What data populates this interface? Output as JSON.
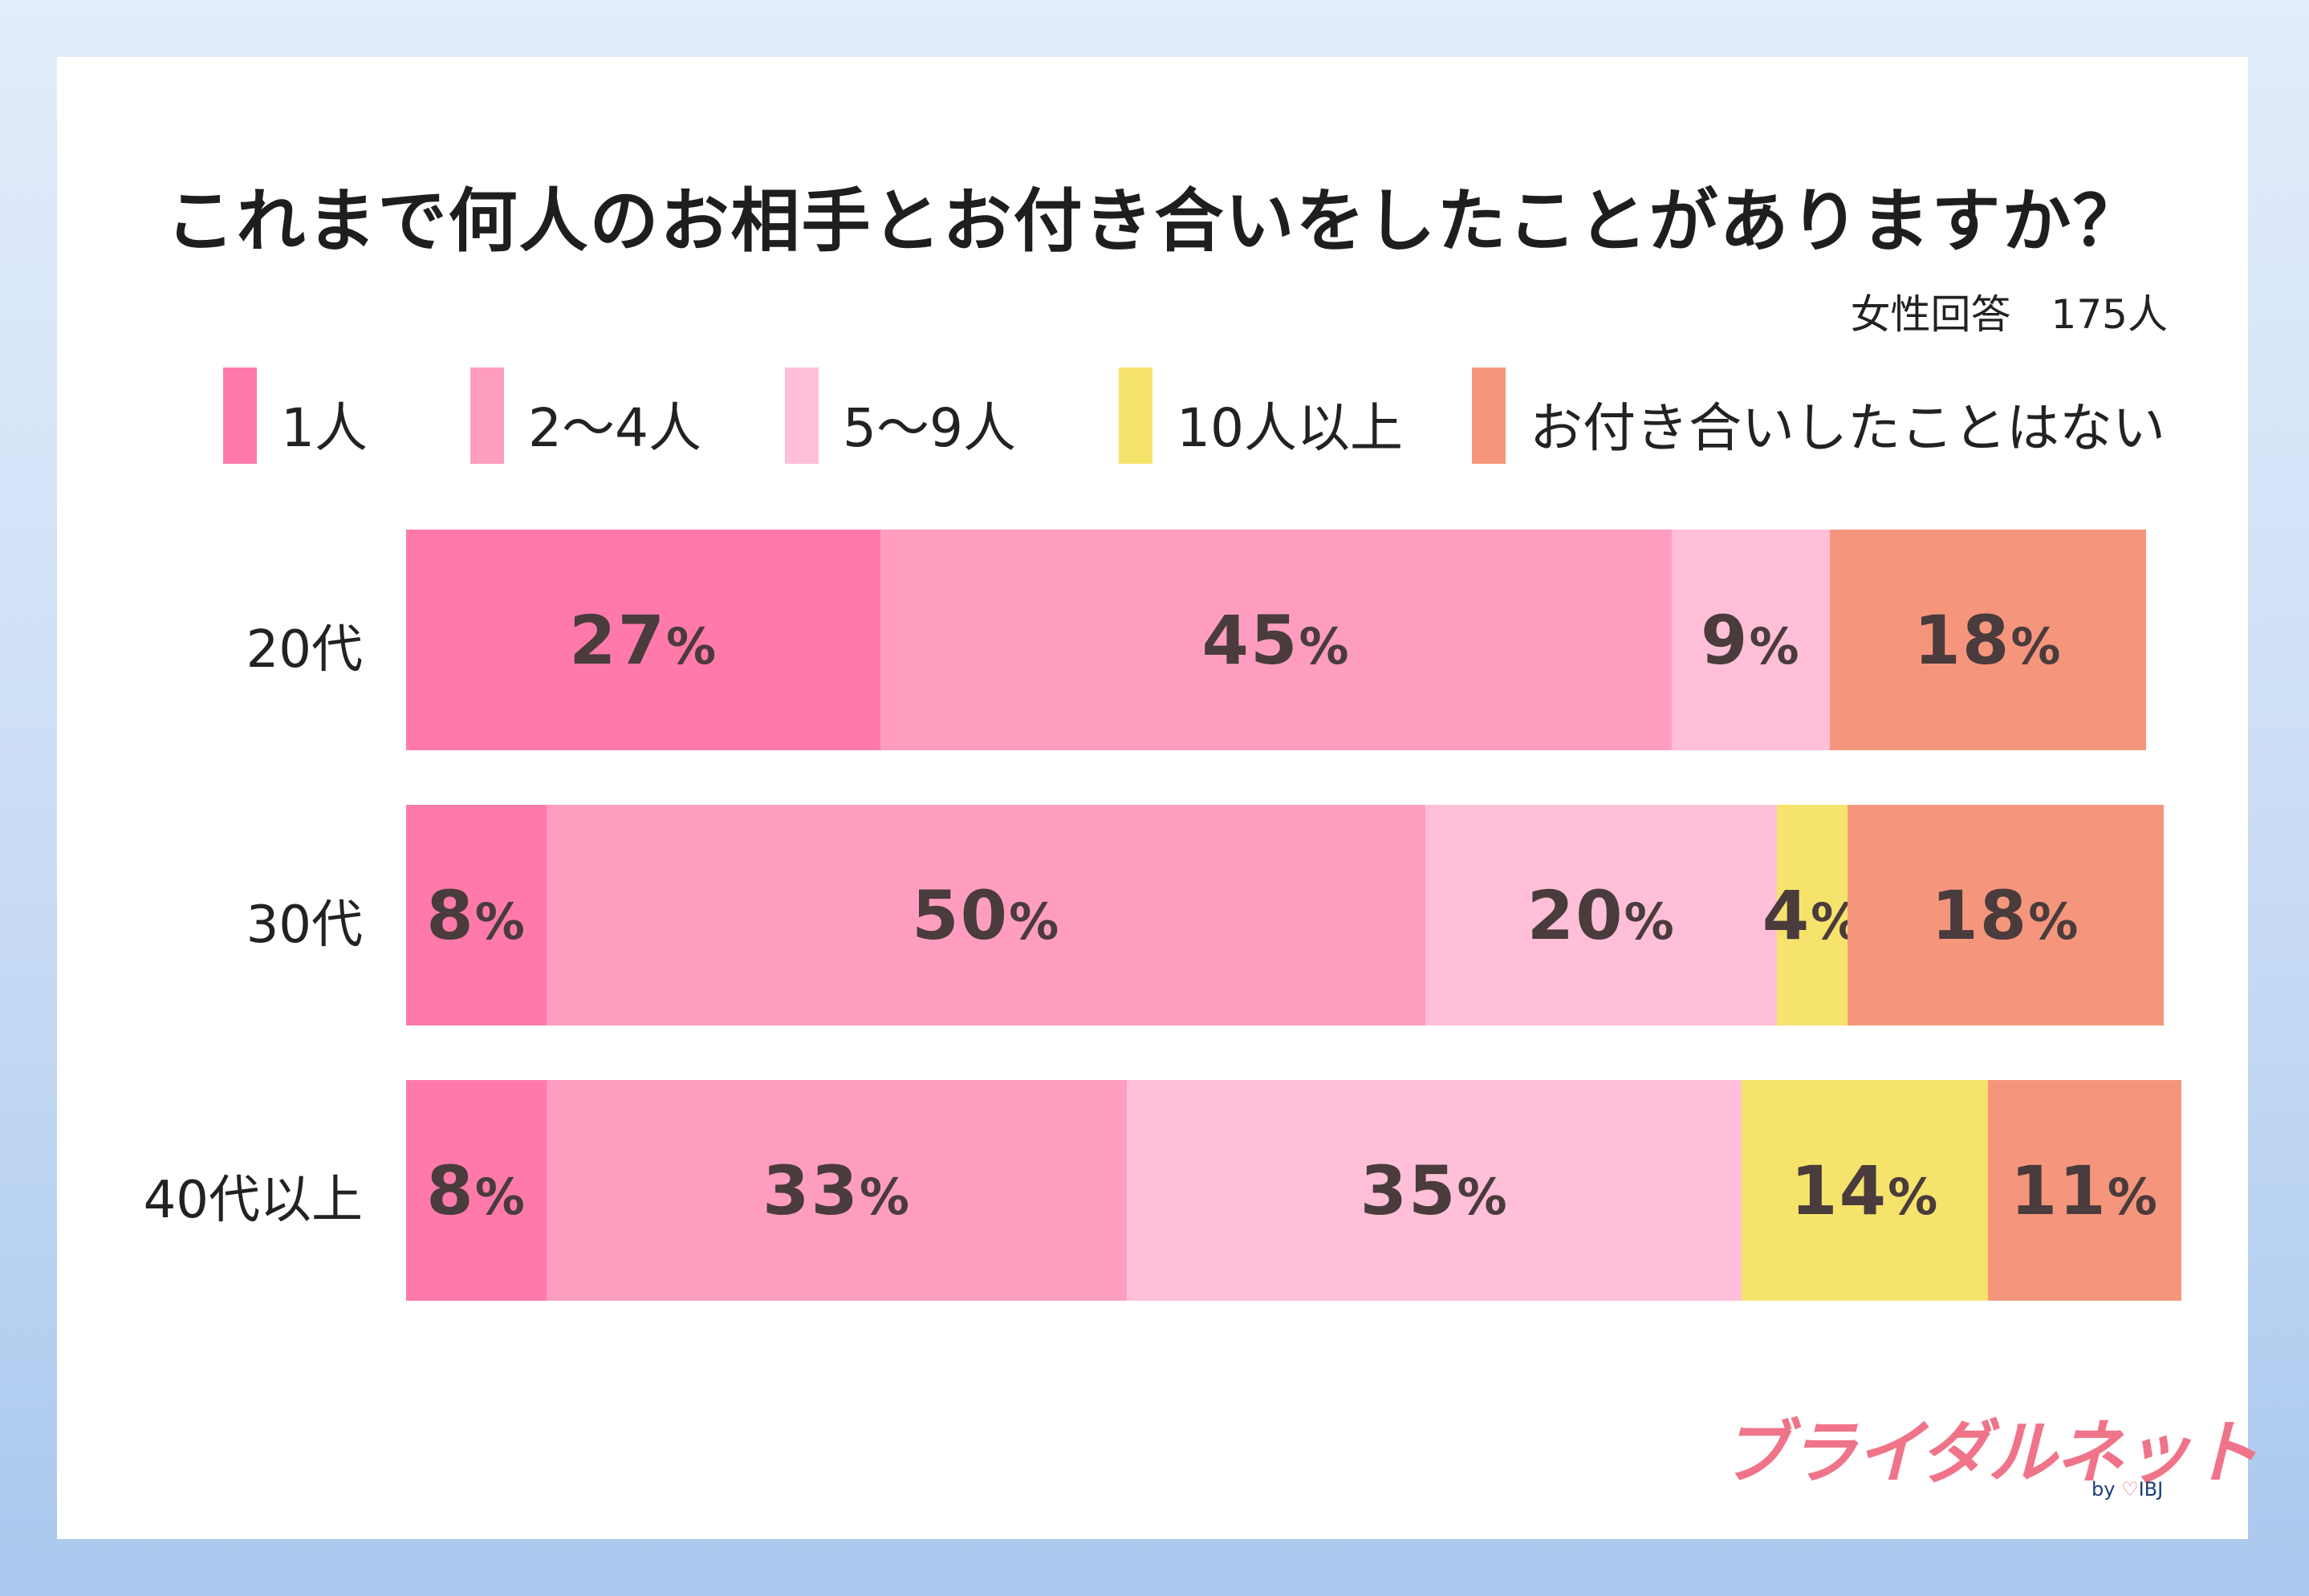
{
  "title": "これまで何人のお相手とお付き合いをしたことがありますか？",
  "subtitle": "女性回答　175人",
  "legend": [
    {
      "label": "1人",
      "color": "#ff7aaa"
    },
    {
      "label": "2～4人",
      "color": "#ff9dc0"
    },
    {
      "label": "5～9人",
      "color": "#ffbfd8"
    },
    {
      "label": "10人以上",
      "color": "#f6e36c"
    },
    {
      "label": "お付き合いしたことはない",
      "color": "#f5967c"
    }
  ],
  "chart_data": {
    "type": "bar",
    "orientation": "horizontal-stacked",
    "categories": [
      "20代",
      "30代",
      "40代以上"
    ],
    "series": [
      {
        "name": "1人",
        "values": [
          27,
          8,
          8
        ]
      },
      {
        "name": "2～4人",
        "values": [
          45,
          50,
          33
        ]
      },
      {
        "name": "5～9人",
        "values": [
          9,
          20,
          35
        ]
      },
      {
        "name": "10人以上",
        "values": [
          0,
          4,
          14
        ]
      },
      {
        "name": "お付き合いしたことはない",
        "values": [
          18,
          18,
          11
        ]
      }
    ],
    "unit": "%",
    "title": "これまで何人のお相手とお付き合いをしたことがありますか？",
    "xlabel": "",
    "ylabel": "",
    "legend_position": "top"
  },
  "logo": {
    "text": "ブライダルネット",
    "sub_by": "by",
    "sub_heart": "♡",
    "sub_brand": "IBJ"
  }
}
